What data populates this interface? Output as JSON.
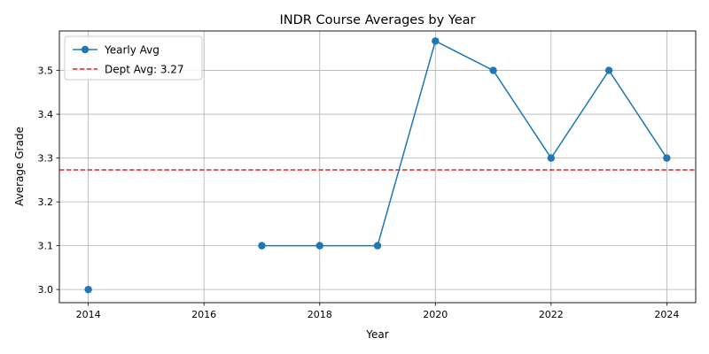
{
  "chart_data": {
    "type": "line",
    "title": "INDR Course Averages by Year",
    "xlabel": "Year",
    "ylabel": "Average Grade",
    "xlim": [
      2013.5,
      2024.5
    ],
    "ylim": [
      2.97,
      3.59
    ],
    "xticks": [
      2014,
      2016,
      2018,
      2020,
      2022,
      2024
    ],
    "yticks": [
      3.0,
      3.1,
      3.2,
      3.3,
      3.4,
      3.5
    ],
    "ytick_labels": [
      "3.0",
      "3.1",
      "3.2",
      "3.3",
      "3.4",
      "3.5"
    ],
    "grid": true,
    "legend_position": "top-left",
    "series": [
      {
        "name": "Yearly Avg",
        "color": "#1f77b4",
        "marker": "circle",
        "segments": [
          [
            {
              "x": 2014,
              "y": 3.0
            }
          ],
          [
            {
              "x": 2017,
              "y": 3.1
            },
            {
              "x": 2018,
              "y": 3.1
            },
            {
              "x": 2019,
              "y": 3.1
            },
            {
              "x": 2020,
              "y": 3.567
            },
            {
              "x": 2021,
              "y": 3.5
            },
            {
              "x": 2022,
              "y": 3.3
            },
            {
              "x": 2023,
              "y": 3.5
            },
            {
              "x": 2024,
              "y": 3.3
            }
          ]
        ]
      }
    ],
    "reference_line": {
      "name": "Dept Avg: 3.27",
      "value": 3.273,
      "color": "#d62728",
      "style": "dashed"
    }
  }
}
